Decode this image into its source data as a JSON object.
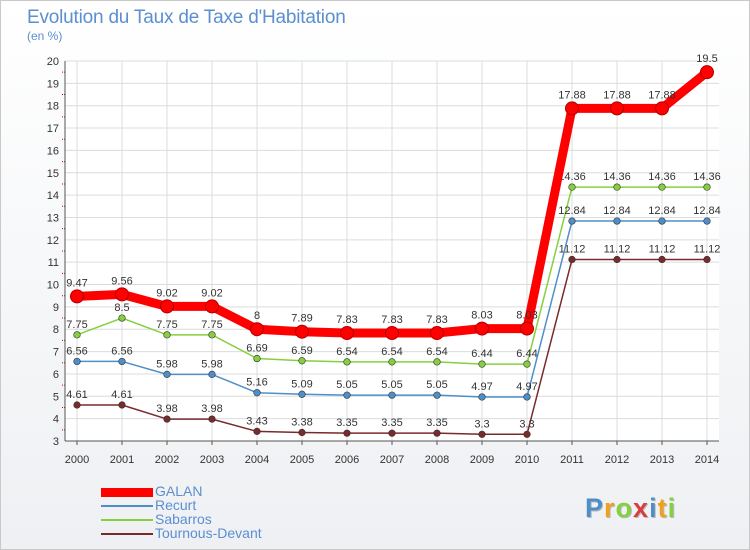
{
  "chart_data": {
    "type": "line",
    "title": "Evolution du Taux de Taxe d'Habitation",
    "ylabel": "(en %)",
    "x": [
      "2000",
      "2001",
      "2002",
      "2003",
      "2004",
      "2005",
      "2006",
      "2007",
      "2008",
      "2009",
      "2010",
      "2011",
      "2012",
      "2013",
      "2014"
    ],
    "ylim": [
      3,
      20
    ],
    "yticks": [
      "3",
      "4",
      "5",
      "6",
      "7",
      "8",
      "9",
      "10",
      "11",
      "12",
      "13",
      "14",
      "15",
      "16",
      "17",
      "18",
      "19",
      "20"
    ],
    "grid": true,
    "legend": "bottom-left",
    "series": [
      {
        "name": "GALAN",
        "color": "#ff0000",
        "values": [
          9.47,
          9.56,
          9.02,
          9.02,
          8,
          7.89,
          7.83,
          7.83,
          7.83,
          8.03,
          8.03,
          17.88,
          17.88,
          17.88,
          19.5
        ],
        "labels": [
          "9.47",
          "9.56",
          "9.02",
          "9.02",
          "8",
          "7.89",
          "7.83",
          "7.83",
          "7.83",
          "8.03",
          "8.03",
          "17.88",
          "17.88",
          "17.88",
          "19.5"
        ]
      },
      {
        "name": "Recurt",
        "color": "#4f8fc9",
        "values": [
          6.56,
          6.56,
          5.98,
          5.98,
          5.16,
          5.09,
          5.05,
          5.05,
          5.05,
          4.97,
          4.97,
          12.84,
          12.84,
          12.84,
          12.84
        ],
        "labels": [
          "6.56",
          "6.56",
          "5.98",
          "5.98",
          "5.16",
          "5.09",
          "5.05",
          "5.05",
          "5.05",
          "4.97",
          "4.97",
          "12.84",
          "12.84",
          "12.84",
          "12.84"
        ]
      },
      {
        "name": "Sabarros",
        "color": "#86cf3e",
        "values": [
          7.75,
          8.5,
          7.75,
          7.75,
          6.69,
          6.59,
          6.54,
          6.54,
          6.54,
          6.44,
          6.44,
          14.36,
          14.36,
          14.36,
          14.36
        ],
        "labels": [
          "7.75",
          "8.5",
          "7.75",
          "7.75",
          "6.69",
          "6.59",
          "6.54",
          "6.54",
          "6.54",
          "6.44",
          "6.44",
          "14.36",
          "14.36",
          "14.36",
          "14.36"
        ]
      },
      {
        "name": "Tournous-Devant",
        "color": "#7a2a2a",
        "values": [
          4.61,
          4.61,
          3.98,
          3.98,
          3.43,
          3.38,
          3.35,
          3.35,
          3.35,
          3.3,
          3.3,
          11.12,
          11.12,
          11.12,
          11.12
        ],
        "labels": [
          "4.61",
          "4.61",
          "3.98",
          "3.98",
          "3.43",
          "3.38",
          "3.35",
          "3.35",
          "3.35",
          "3.3",
          "3.3",
          "11.12",
          "11.12",
          "11.12",
          "11.12"
        ]
      }
    ]
  },
  "logo": {
    "text": "Proxiti",
    "colors": [
      "#4f8fc9",
      "#f0a020",
      "#86cf3e",
      "#d93d3d",
      "#4f8fc9",
      "#f0a020",
      "#86cf3e"
    ]
  }
}
